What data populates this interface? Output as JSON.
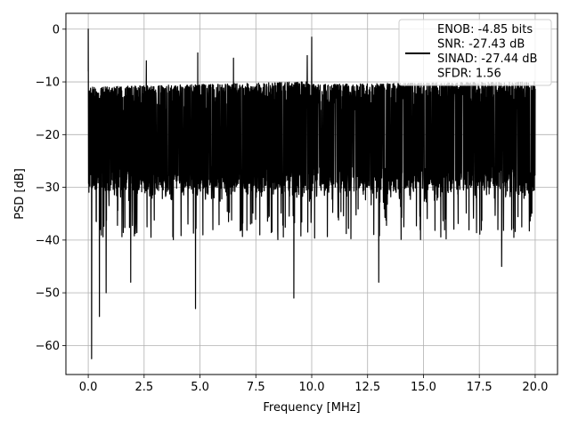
{
  "chart_data": {
    "type": "line",
    "title": "",
    "xlabel": "Frequency [MHz]",
    "ylabel": "PSD [dB]",
    "xlim": [
      -1.0,
      21.0
    ],
    "ylim": [
      -65.5,
      3.0
    ],
    "x_ticks": [
      0.0,
      2.5,
      5.0,
      7.5,
      10.0,
      12.5,
      15.0,
      17.5,
      20.0
    ],
    "x_tick_labels": [
      "0.0",
      "2.5",
      "5.0",
      "7.5",
      "10.0",
      "12.5",
      "15.0",
      "17.5",
      "20.0"
    ],
    "y_ticks": [
      0,
      -10,
      -20,
      -30,
      -40,
      -50,
      -60
    ],
    "y_tick_labels": [
      "0",
      "−10",
      "−20",
      "−30",
      "−40",
      "−50",
      "−60"
    ],
    "grid": true,
    "legend_position": "top-right",
    "legend_entries": [
      "ENOB: -4.85 bits",
      "SNR: -27.43 dB",
      "SINAD: -27.44 dB",
      "SFDR: 1.56"
    ],
    "series": [
      {
        "color": "#000000",
        "x_range": [
          0.0,
          20.0
        ],
        "noise_floor_band": [
          -30,
          -10
        ],
        "peaks": [
          {
            "x": 0.0,
            "y": 0.0
          },
          {
            "x": 10.0,
            "y": -1.5
          },
          {
            "x": 9.8,
            "y": -5.0
          },
          {
            "x": 2.6,
            "y": -6.0
          },
          {
            "x": 4.9,
            "y": -4.5
          },
          {
            "x": 6.5,
            "y": -5.5
          }
        ],
        "dips": [
          {
            "x": 0.15,
            "y": -62.5
          },
          {
            "x": 0.5,
            "y": -54.5
          },
          {
            "x": 0.8,
            "y": -50.0
          },
          {
            "x": 1.9,
            "y": -48.0
          },
          {
            "x": 4.8,
            "y": -53.0
          },
          {
            "x": 9.2,
            "y": -51.0
          },
          {
            "x": 13.0,
            "y": -48.0
          },
          {
            "x": 18.5,
            "y": -45.0
          }
        ]
      }
    ]
  }
}
